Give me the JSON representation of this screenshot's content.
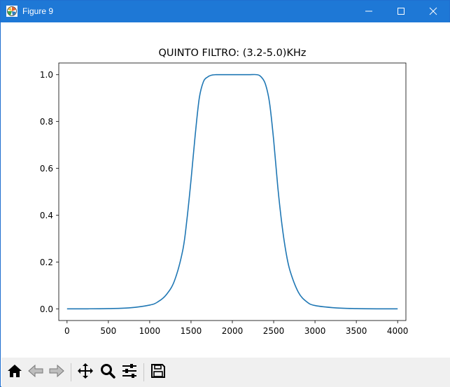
{
  "window": {
    "title": "Figure 9",
    "controls": {
      "minimize": "minimize-icon",
      "maximize": "maximize-icon",
      "close": "close-icon"
    }
  },
  "toolbar": {
    "buttons": [
      {
        "name": "home-button",
        "icon": "home-icon"
      },
      {
        "name": "back-button",
        "icon": "back-arrow-icon"
      },
      {
        "name": "forward-button",
        "icon": "forward-arrow-icon"
      },
      {
        "name": "pan-button",
        "icon": "pan-arrows-icon"
      },
      {
        "name": "zoom-button",
        "icon": "magnifier-icon"
      },
      {
        "name": "configure-subplots-button",
        "icon": "sliders-icon"
      },
      {
        "name": "save-button",
        "icon": "floppy-disk-icon"
      }
    ]
  },
  "chart_data": {
    "type": "line",
    "title": "QUINTO FILTRO: (3.2-5.0)KHz",
    "xlabel": "",
    "ylabel": "",
    "xlim": [
      -100,
      4100
    ],
    "ylim": [
      -0.05,
      1.05
    ],
    "xticks": [
      0,
      500,
      1000,
      1500,
      2000,
      2500,
      3000,
      3500,
      4000
    ],
    "xtick_labels": [
      "0",
      "500",
      "1000",
      "1500",
      "2000",
      "2500",
      "3000",
      "3500",
      "4000"
    ],
    "yticks": [
      0.0,
      0.2,
      0.4,
      0.6,
      0.8,
      1.0
    ],
    "ytick_labels": [
      "0.0",
      "0.2",
      "0.4",
      "0.6",
      "0.8",
      "1.0"
    ],
    "grid": false,
    "line_color": "#1f77b4",
    "series": [
      {
        "x": [
          0,
          250,
          500,
          750,
          1000,
          1100,
          1200,
          1300,
          1400,
          1450,
          1500,
          1550,
          1600,
          1650,
          1700,
          1750,
          1800,
          1900,
          2000,
          2100,
          2200,
          2300,
          2350,
          2400,
          2450,
          2500,
          2550,
          2600,
          2650,
          2700,
          2800,
          2900,
          3000,
          3250,
          3500,
          3750,
          4000
        ],
        "y": [
          0.0,
          0.0,
          0.001,
          0.004,
          0.016,
          0.03,
          0.06,
          0.12,
          0.25,
          0.38,
          0.55,
          0.74,
          0.9,
          0.97,
          0.99,
          0.998,
          1.0,
          1.0,
          1.0,
          1.0,
          1.0,
          1.0,
          0.99,
          0.96,
          0.88,
          0.72,
          0.52,
          0.36,
          0.24,
          0.16,
          0.07,
          0.03,
          0.014,
          0.004,
          0.001,
          0.0,
          0.0
        ]
      }
    ]
  }
}
